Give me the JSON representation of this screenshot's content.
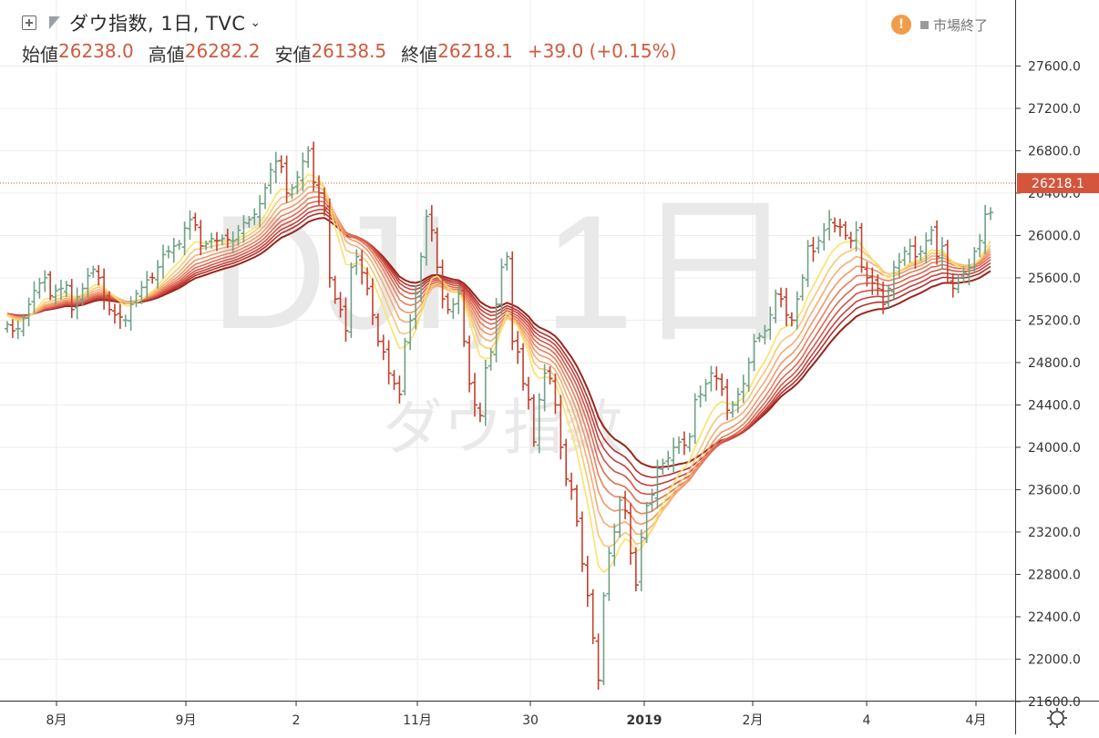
{
  "header": {
    "title": "ダウ指数, 1日, TVC",
    "ohlc": [
      {
        "label": "始値",
        "value": "26238.0"
      },
      {
        "label": "高値",
        "value": "26282.2"
      },
      {
        "label": "安値",
        "value": "26138.5"
      },
      {
        "label": "終値",
        "value": "26218.1"
      }
    ],
    "change": "+39.0 (+0.15%)",
    "status_text": "市場終了"
  },
  "watermark": {
    "main": "DJI, 1日",
    "sub": "ダウ指数"
  },
  "colors": {
    "up": "#6fa287",
    "down": "#c2412f",
    "price_tag_bg": "#d4553c",
    "ribbon": [
      "#fce26a",
      "#f8c679",
      "#f4ad74",
      "#ef9769",
      "#e87f5e",
      "#de6a52",
      "#d25547",
      "#c4433b",
      "#b13231",
      "#9b2419"
    ]
  },
  "chart_data": {
    "type": "ohlc",
    "series_name": "DJI",
    "y_axis": {
      "ticks": [
        "27600.0",
        "27200.0",
        "26800.0",
        "26400.0",
        "26000.0",
        "25600.0",
        "25200.0",
        "24800.0",
        "24400.0",
        "24000.0",
        "23600.0",
        "23200.0",
        "22800.0",
        "22400.0",
        "22000.0",
        "21600.0"
      ],
      "range": [
        21350,
        27950
      ]
    },
    "x_axis": {
      "labels": [
        "8月",
        "9月",
        "2",
        "11月",
        "30",
        "2019",
        "2月",
        "4",
        "4月"
      ]
    },
    "last_price": "26218.1",
    "close": [
      25160,
      25100,
      25120,
      25220,
      25350,
      25480,
      25550,
      25600,
      25430,
      25480,
      25500,
      25530,
      25300,
      25420,
      25500,
      25620,
      25680,
      25600,
      25400,
      25300,
      25250,
      25230,
      25200,
      25350,
      25450,
      25510,
      25580,
      25600,
      25700,
      25820,
      25850,
      25900,
      25920,
      26070,
      26150,
      26100,
      25900,
      25920,
      25970,
      25950,
      25970,
      25960,
      25950,
      26050,
      26120,
      26150,
      26200,
      26300,
      26450,
      26620,
      26700,
      26650,
      26400,
      26450,
      26550,
      26700,
      26800,
      26500,
      26400,
      26250,
      25600,
      25400,
      25300,
      25100,
      25700,
      25800,
      25650,
      25500,
      25250,
      25000,
      24900,
      24700,
      24600,
      24500,
      25000,
      25200,
      25450,
      25800,
      26180,
      26050,
      25700,
      25400,
      25300,
      25350,
      25450,
      25000,
      24600,
      24400,
      24300,
      24750,
      24900,
      25350,
      25700,
      25800,
      25000,
      24900,
      24600,
      24450,
      24050,
      24450,
      24700,
      24650,
      24400,
      24000,
      23700,
      23600,
      23300,
      22900,
      22600,
      22200,
      21800,
      22600,
      23000,
      23200,
      23500,
      23400,
      23000,
      22700,
      23150,
      23450,
      23550,
      23800,
      23850,
      23900,
      24000,
      24050,
      24020,
      24100,
      24450,
      24500,
      24600,
      24700,
      24650,
      24550,
      24350,
      24400,
      24500,
      24600,
      24800,
      25000,
      25050,
      25100,
      25250,
      25450,
      25400,
      25250,
      25200,
      25400,
      25600,
      25900,
      25850,
      25950,
      26050,
      26150,
      26090,
      26080,
      26000,
      25950,
      26050,
      25700,
      25600,
      25550,
      25500,
      25350,
      25500,
      25700,
      25750,
      25850,
      25900,
      25800,
      25850,
      25950,
      26050,
      25800,
      25900,
      25600,
      25500,
      25600,
      25650,
      25700,
      25850,
      25950,
      26200,
      26218.1
    ]
  }
}
